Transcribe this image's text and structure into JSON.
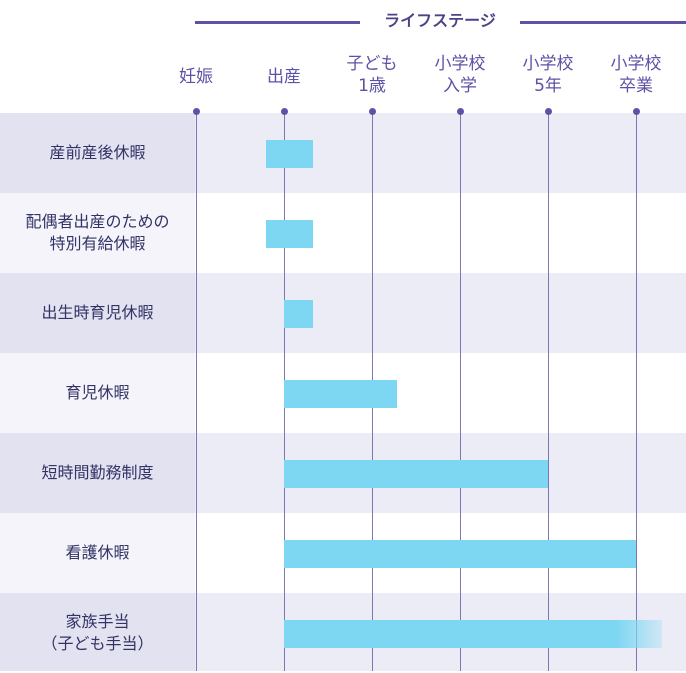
{
  "header": {
    "title": "ライフステージ",
    "line_color": "#5c52a6"
  },
  "stages": [
    {
      "id": "pregnancy",
      "lines": [
        "妊娠"
      ]
    },
    {
      "id": "birth",
      "lines": [
        "出産"
      ]
    },
    {
      "id": "age1",
      "lines": [
        "子ども",
        "1歳"
      ]
    },
    {
      "id": "elementary-entry",
      "lines": [
        "小学校",
        "入学"
      ]
    },
    {
      "id": "elementary-5th",
      "lines": [
        "小学校",
        "5年"
      ]
    },
    {
      "id": "elementary-grad",
      "lines": [
        "小学校",
        "卒業"
      ]
    }
  ],
  "rows": [
    {
      "lines": [
        "産前産後休暇"
      ],
      "start": 0.8,
      "end": 1.33,
      "fade": false
    },
    {
      "lines": [
        "配偶者出産のための",
        "特別有給休暇"
      ],
      "start": 0.8,
      "end": 1.33,
      "fade": false
    },
    {
      "lines": [
        "出生時育児休暇"
      ],
      "start": 1.0,
      "end": 1.33,
      "fade": false
    },
    {
      "lines": [
        "育児休暇"
      ],
      "start": 1.0,
      "end": 2.28,
      "fade": false
    },
    {
      "lines": [
        "短時間勤務制度"
      ],
      "start": 1.0,
      "end": 4.0,
      "fade": false
    },
    {
      "lines": [
        "看護休暇"
      ],
      "start": 1.0,
      "end": 5.0,
      "fade": false
    },
    {
      "lines": [
        "家族手当",
        "（子ども手当）"
      ],
      "start": 1.0,
      "end": 5.3,
      "fade": true
    }
  ],
  "colors": {
    "bar": "#7dd7f2",
    "row_shaded": "#ececf6",
    "row_label_shaded": "#e2e2f0",
    "row_label_plain": "#f4f4fa",
    "stage_text": "#5c52a6",
    "label_text": "#333366"
  }
}
